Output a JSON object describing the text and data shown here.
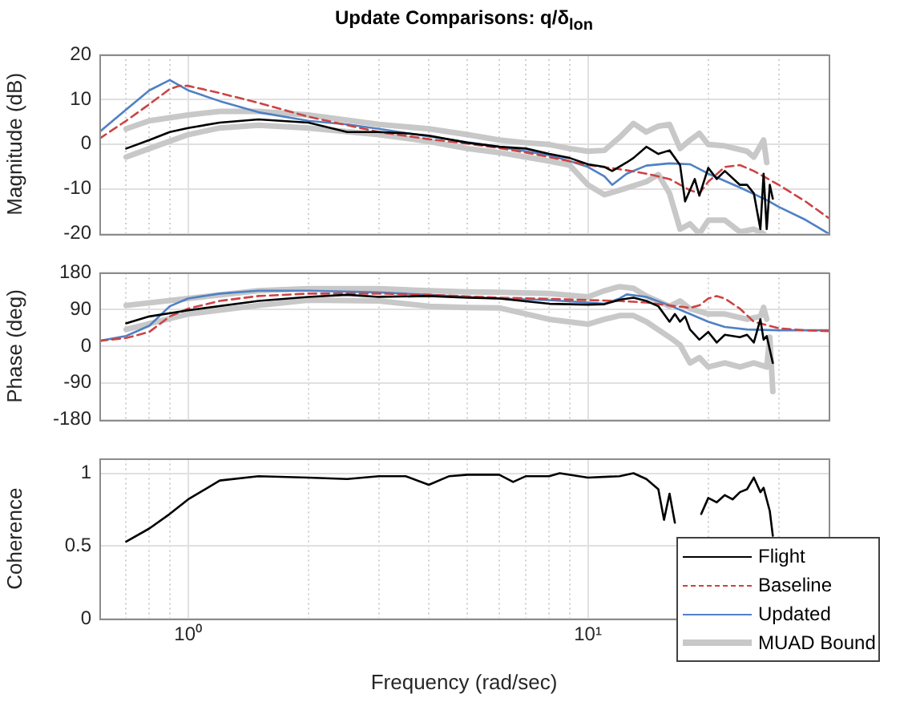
{
  "chart_data": [
    {
      "type": "line",
      "title": "Update Comparisons: q/δ$_{lon}$",
      "ylabel": "Magnitude (dB)",
      "grid": true,
      "marker": "none",
      "log": "x",
      "tick_labels": "y",
      "legend": "bottom right",
      "xlim": [
        0.6,
        40
      ],
      "xticks": [
        0.7,
        0.8,
        0.9,
        1,
        2,
        3,
        4,
        5,
        6,
        7,
        8,
        9,
        10,
        20,
        30
      ],
      "ylim": [
        -20,
        20
      ],
      "yticks": [
        -20,
        -10,
        0,
        10,
        20
      ],
      "series": [
        {
          "name": "Flight",
          "color": "#000000",
          "line_style": "solid",
          "x": [
            0.7,
            0.8,
            0.9,
            1,
            1.2,
            1.5,
            2,
            2.5,
            3,
            3.5,
            4,
            5,
            6,
            7,
            8,
            9,
            10,
            11,
            11.5,
            12.5,
            13,
            14,
            15,
            16,
            17,
            17.5,
            18.5,
            19,
            20,
            21,
            22,
            24,
            25,
            26,
            27,
            27.5,
            28,
            28.5,
            29
          ],
          "values": [
            -1,
            0.9,
            2.7,
            3.6,
            4.8,
            5.5,
            4.8,
            2.7,
            2.7,
            2.4,
            1.9,
            0.3,
            -0.6,
            -1,
            -2.2,
            -3.1,
            -4.5,
            -5.1,
            -6,
            -4.1,
            -3.1,
            -0.6,
            -2.2,
            -1.4,
            -4.7,
            -12.8,
            -7.8,
            -11.5,
            -5.3,
            -7.8,
            -6,
            -9.1,
            -9.1,
            -11,
            -19,
            -6.6,
            -19,
            -9.1,
            -12.2
          ]
        },
        {
          "name": "Baseline",
          "color": "#cc4444",
          "line_style": "dashed",
          "x": [
            0.6,
            0.7,
            0.8,
            0.9,
            0.95,
            1,
            1.2,
            1.5,
            2,
            3,
            4,
            5,
            6,
            7,
            8,
            10,
            12,
            14,
            16,
            18,
            19,
            20,
            22,
            24,
            26,
            30,
            35,
            40
          ],
          "values": [
            1.2,
            5.2,
            8.9,
            12.3,
            13,
            13,
            11.4,
            9.2,
            6.1,
            2.7,
            1.1,
            0.1,
            -0.9,
            -1.9,
            -2.9,
            -4.7,
            -5.6,
            -6.6,
            -7.8,
            -10.3,
            -11,
            -8.4,
            -5.1,
            -4.7,
            -6,
            -9.1,
            -12.8,
            -16.5
          ]
        },
        {
          "name": "Updated",
          "color": "#4f81c4",
          "line_style": "solid",
          "x": [
            0.6,
            0.7,
            0.8,
            0.9,
            1,
            1.2,
            1.5,
            2,
            2.5,
            3,
            4,
            5,
            6,
            7,
            8,
            9,
            10,
            11,
            11.5,
            12.5,
            14,
            16,
            18,
            20,
            24,
            28,
            30,
            35,
            40
          ],
          "values": [
            2.7,
            7.7,
            12,
            14.3,
            12,
            9.6,
            7.1,
            5.2,
            4.4,
            3.4,
            1.7,
            0.4,
            -0.6,
            -1.6,
            -2.5,
            -3.8,
            -5.1,
            -7.2,
            -9.1,
            -6.6,
            -4.8,
            -4.3,
            -4.5,
            -6.6,
            -9.7,
            -12.5,
            -14,
            -16.9,
            -20
          ]
        },
        {
          "name": "MUAD Bound",
          "color": "#c8c8c8",
          "line_style": "solid",
          "x": [
            0.7,
            0.8,
            1,
            1.2,
            1.5,
            2,
            3,
            4,
            5,
            6,
            7,
            8,
            9,
            10,
            11,
            12,
            13,
            14,
            15,
            16,
            17,
            18,
            19,
            20,
            22,
            25,
            26,
            27.5,
            28
          ],
          "values": [
            3.4,
            5.2,
            6.5,
            7.3,
            7.3,
            6.5,
            4.4,
            3.4,
            2.1,
            0.9,
            0.3,
            -0.1,
            -1,
            -1.6,
            -1.4,
            1.5,
            4.6,
            2.7,
            4,
            4.4,
            -1,
            0.9,
            2.4,
            -0.1,
            -0.4,
            -1.6,
            -2.9,
            0.9,
            -4.1
          ]
        },
        {
          "color": "#c8c8c8",
          "line_style": "solid",
          "x": [
            0.7,
            0.8,
            1,
            1.2,
            1.5,
            2,
            3,
            4,
            5,
            6,
            7,
            8,
            9,
            10,
            11,
            12,
            14,
            15,
            16,
            17,
            18,
            19,
            20,
            22,
            24,
            26,
            27.5
          ],
          "values": [
            -2.9,
            -1,
            2.1,
            3.6,
            4.2,
            3.6,
            2.1,
            0.6,
            -1,
            -1.9,
            -2.9,
            -3.8,
            -4.7,
            -9.1,
            -11.3,
            -10.3,
            -8.4,
            -6.8,
            -11,
            -19,
            -17.8,
            -20,
            -17,
            -17,
            -19.6,
            -19,
            -20
          ]
        }
      ]
    },
    {
      "type": "line",
      "ylabel": "Phase (deg)",
      "grid": true,
      "marker": "none",
      "log": "x",
      "tick_labels": "y",
      "xlim": [
        0.6,
        40
      ],
      "xticks": [
        0.7,
        0.8,
        0.9,
        1,
        2,
        3,
        4,
        5,
        6,
        7,
        8,
        9,
        10,
        20,
        30
      ],
      "ylim": [
        -180,
        180
      ],
      "yticks": [
        -180,
        -90,
        0,
        90,
        180
      ],
      "series": [
        {
          "color": "#000000",
          "line_style": "solid",
          "x": [
            0.7,
            0.8,
            1,
            1.5,
            2,
            2.5,
            3,
            4,
            5,
            6,
            8,
            10,
            11,
            12,
            13,
            14,
            15,
            16,
            16.5,
            17,
            17.5,
            18,
            19,
            20,
            21,
            22,
            24,
            25,
            26,
            27,
            27.5,
            28,
            29
          ],
          "values": [
            56,
            73,
            88,
            111,
            121,
            126,
            121,
            123,
            119,
            117,
            104,
            102,
            103,
            114,
            119,
            111,
            98,
            60,
            79,
            60,
            73,
            41,
            16,
            35,
            9,
            28,
            22,
            28,
            9,
            66,
            16,
            25,
            -41
          ]
        },
        {
          "color": "#cc4444",
          "line_style": "dashed",
          "x": [
            0.6,
            0.7,
            0.8,
            0.9,
            1,
            1.2,
            1.5,
            2,
            3,
            4,
            6,
            8,
            10,
            12,
            14,
            16,
            18,
            19,
            20,
            21,
            22,
            24,
            26,
            30,
            35,
            40
          ],
          "values": [
            13,
            20,
            35,
            73,
            92,
            111,
            123,
            129,
            129,
            126,
            119,
            116,
            113,
            111,
            107,
            100,
            94,
            100,
            117,
            123,
            117,
            92,
            60,
            44,
            39,
            37
          ]
        },
        {
          "color": "#4f81c4",
          "line_style": "solid",
          "x": [
            0.6,
            0.7,
            0.8,
            0.9,
            1,
            1.2,
            1.5,
            2,
            3,
            4,
            5,
            6,
            8,
            10,
            11,
            12,
            12.5,
            14,
            16,
            18,
            20,
            22,
            25,
            30,
            40
          ],
          "values": [
            13,
            25,
            50,
            98,
            117,
            129,
            136,
            136,
            132,
            126,
            121,
            117,
            113,
            107,
            104,
            117,
            127,
            121,
            100,
            79,
            60,
            47,
            41,
            39,
            39
          ]
        },
        {
          "color": "#c8c8c8",
          "line_style": "solid",
          "x": [
            0.7,
            1,
            1.5,
            2,
            3,
            4,
            5,
            6,
            8,
            10,
            11,
            12,
            13,
            14,
            16,
            17,
            18,
            20,
            22,
            25,
            27,
            27.5,
            28
          ],
          "values": [
            100,
            117,
            136,
            141,
            141,
            136,
            133,
            132,
            129,
            121,
            136,
            146,
            142,
            123,
            98,
            111,
            92,
            79,
            79,
            66,
            73,
            95,
            66
          ]
        },
        {
          "color": "#c8c8c8",
          "line_style": "solid",
          "x": [
            0.7,
            1,
            1.5,
            2,
            3,
            4,
            5,
            6,
            8,
            10,
            11,
            12,
            13,
            14,
            16,
            17,
            18,
            19,
            20,
            22,
            24,
            26,
            28,
            28.5,
            29
          ],
          "values": [
            41,
            79,
            100,
            113,
            111,
            98,
            95,
            94,
            66,
            54,
            66,
            75,
            75,
            60,
            22,
            3,
            -41,
            -28,
            -51,
            -41,
            -51,
            -41,
            -51,
            22,
            -111
          ]
        }
      ]
    },
    {
      "type": "line",
      "ylabel": "Coherence",
      "xlabel": "Frequency (rad/sec)",
      "grid": true,
      "marker": "none",
      "log": "x",
      "xlim": [
        0.6,
        40
      ],
      "xticks": [
        {
          "value": 0.7,
          "label": null
        },
        {
          "value": 0.8,
          "label": null
        },
        {
          "value": 0.9,
          "label": null
        },
        {
          "value": 1,
          "label": "10⁰"
        },
        {
          "value": 2,
          "label": null
        },
        {
          "value": 3,
          "label": null
        },
        {
          "value": 4,
          "label": null
        },
        {
          "value": 5,
          "label": null
        },
        {
          "value": 6,
          "label": null
        },
        {
          "value": 7,
          "label": null
        },
        {
          "value": 8,
          "label": null
        },
        {
          "value": 9,
          "label": null
        },
        {
          "value": 10,
          "label": "10¹"
        },
        {
          "value": 20,
          "label": null
        },
        {
          "value": 30,
          "label": null
        }
      ],
      "ylim": [
        0,
        1.1
      ],
      "yticks": [
        0,
        0.5,
        1
      ],
      "series": [
        {
          "color": "#000000",
          "line_style": "solid",
          "x": [
            0.7,
            0.8,
            0.9,
            1,
            1.2,
            1.5,
            2,
            2.5,
            3,
            3.5,
            4,
            4.5,
            5,
            6,
            6.5,
            7,
            8,
            8.5,
            10,
            12,
            13,
            14,
            15,
            15.5,
            16,
            16.5,
            17,
            19.2,
            20,
            21,
            22,
            23,
            24,
            25,
            26,
            27,
            27.5,
            28.5,
            29
          ],
          "values": [
            0.53,
            0.62,
            0.72,
            0.82,
            0.95,
            0.98,
            0.97,
            0.96,
            0.98,
            0.98,
            0.92,
            0.98,
            0.99,
            0.99,
            0.94,
            0.98,
            0.98,
            1,
            0.97,
            0.98,
            1,
            0.96,
            0.89,
            0.68,
            0.86,
            0.66,
            null,
            0.72,
            0.83,
            0.8,
            0.85,
            0.82,
            0.87,
            0.89,
            0.97,
            0.87,
            0.9,
            0.74,
            0.57
          ]
        }
      ]
    }
  ]
}
